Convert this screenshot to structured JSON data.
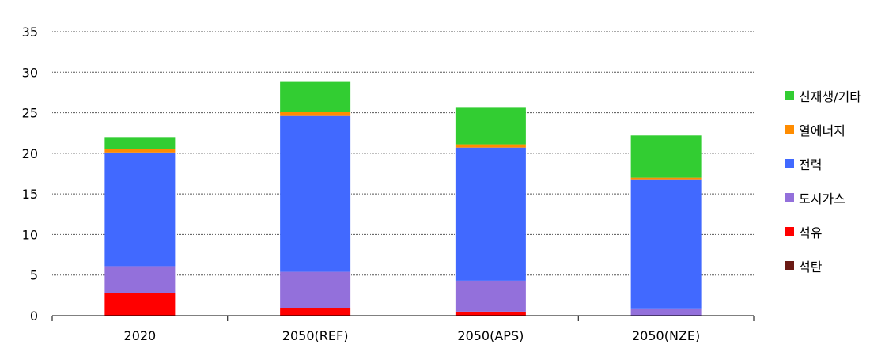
{
  "chart_data": {
    "type": "bar",
    "stacked": true,
    "categories": [
      "2020",
      "2050(REF)",
      "2050(APS)",
      "2050(NZE)"
    ],
    "ylim": [
      0,
      35
    ],
    "yticks": [
      0,
      5,
      10,
      15,
      20,
      25,
      30,
      35
    ],
    "grid": true,
    "legend_position": "right",
    "series": [
      {
        "name": "석탄",
        "color": "#6b1a14",
        "values": [
          0.0,
          0.0,
          0.0,
          0.0
        ]
      },
      {
        "name": "석유",
        "color": "#ff0000",
        "values": [
          2.8,
          0.9,
          0.5,
          0.0
        ]
      },
      {
        "name": "도시가스",
        "color": "#9370db",
        "values": [
          3.3,
          4.5,
          3.8,
          0.8
        ]
      },
      {
        "name": "전력",
        "color": "#4169ff",
        "values": [
          14.0,
          19.2,
          16.4,
          16.0
        ]
      },
      {
        "name": "열에너지",
        "color": "#ff8c00",
        "values": [
          0.4,
          0.5,
          0.4,
          0.2
        ]
      },
      {
        "name": "신재생/기타",
        "color": "#32cd32",
        "values": [
          1.5,
          3.7,
          4.6,
          5.2
        ]
      }
    ]
  }
}
